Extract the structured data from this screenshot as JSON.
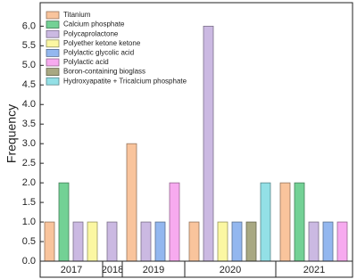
{
  "chart_data": {
    "type": "bar",
    "y_label": "Frequency",
    "categories": [
      "2017",
      "2018",
      "2019",
      "2020",
      "2021"
    ],
    "series": [
      {
        "name": "Titanium",
        "color": "#f9c49c",
        "values": [
          1,
          null,
          3,
          1,
          2
        ]
      },
      {
        "name": "Calcium phosphate",
        "color": "#73d195",
        "values": [
          2,
          null,
          null,
          null,
          2
        ]
      },
      {
        "name": "Polycaprolactone",
        "color": "#cbb9e2",
        "values": [
          1,
          1,
          1,
          6,
          1
        ]
      },
      {
        "name": "Polyether ketone ketone",
        "color": "#fbf7a2",
        "values": [
          1,
          null,
          null,
          1,
          null
        ]
      },
      {
        "name": "Polylactic glycolic acid",
        "color": "#93b7ef",
        "values": [
          null,
          null,
          1,
          1,
          1
        ]
      },
      {
        "name": "Polylactic acid",
        "color": "#f7aaef",
        "values": [
          null,
          null,
          2,
          null,
          1
        ]
      },
      {
        "name": "Boron-containing bioglass",
        "color": "#a8a882",
        "values": [
          null,
          null,
          null,
          1,
          null
        ]
      },
      {
        "name": "Hydroxyapatite + Tricalcium phosphate",
        "color": "#93e0e6",
        "values": [
          null,
          null,
          null,
          2,
          null
        ]
      }
    ],
    "ylim": [
      0,
      6.6
    ],
    "yticks": [
      {
        "value": 0,
        "label": "0.0"
      },
      {
        "value": 0.5,
        "label": "0.5"
      },
      {
        "value": 1,
        "label": "1.0"
      },
      {
        "value": 1.5,
        "label": "1.5"
      },
      {
        "value": 2,
        "label": "2.0"
      },
      {
        "value": 2.5,
        "label": "2.5"
      },
      {
        "value": 3,
        "label": "3.0"
      },
      {
        "value": 3.5,
        "label": "3.5"
      },
      {
        "value": 4,
        "label": "4.0"
      },
      {
        "value": 4.5,
        "label": "4.5"
      },
      {
        "value": 5,
        "label": "5.0"
      },
      {
        "value": 5.5,
        "label": "5.5"
      },
      {
        "value": 6,
        "label": "6.0"
      }
    ],
    "legend": "upper left"
  }
}
